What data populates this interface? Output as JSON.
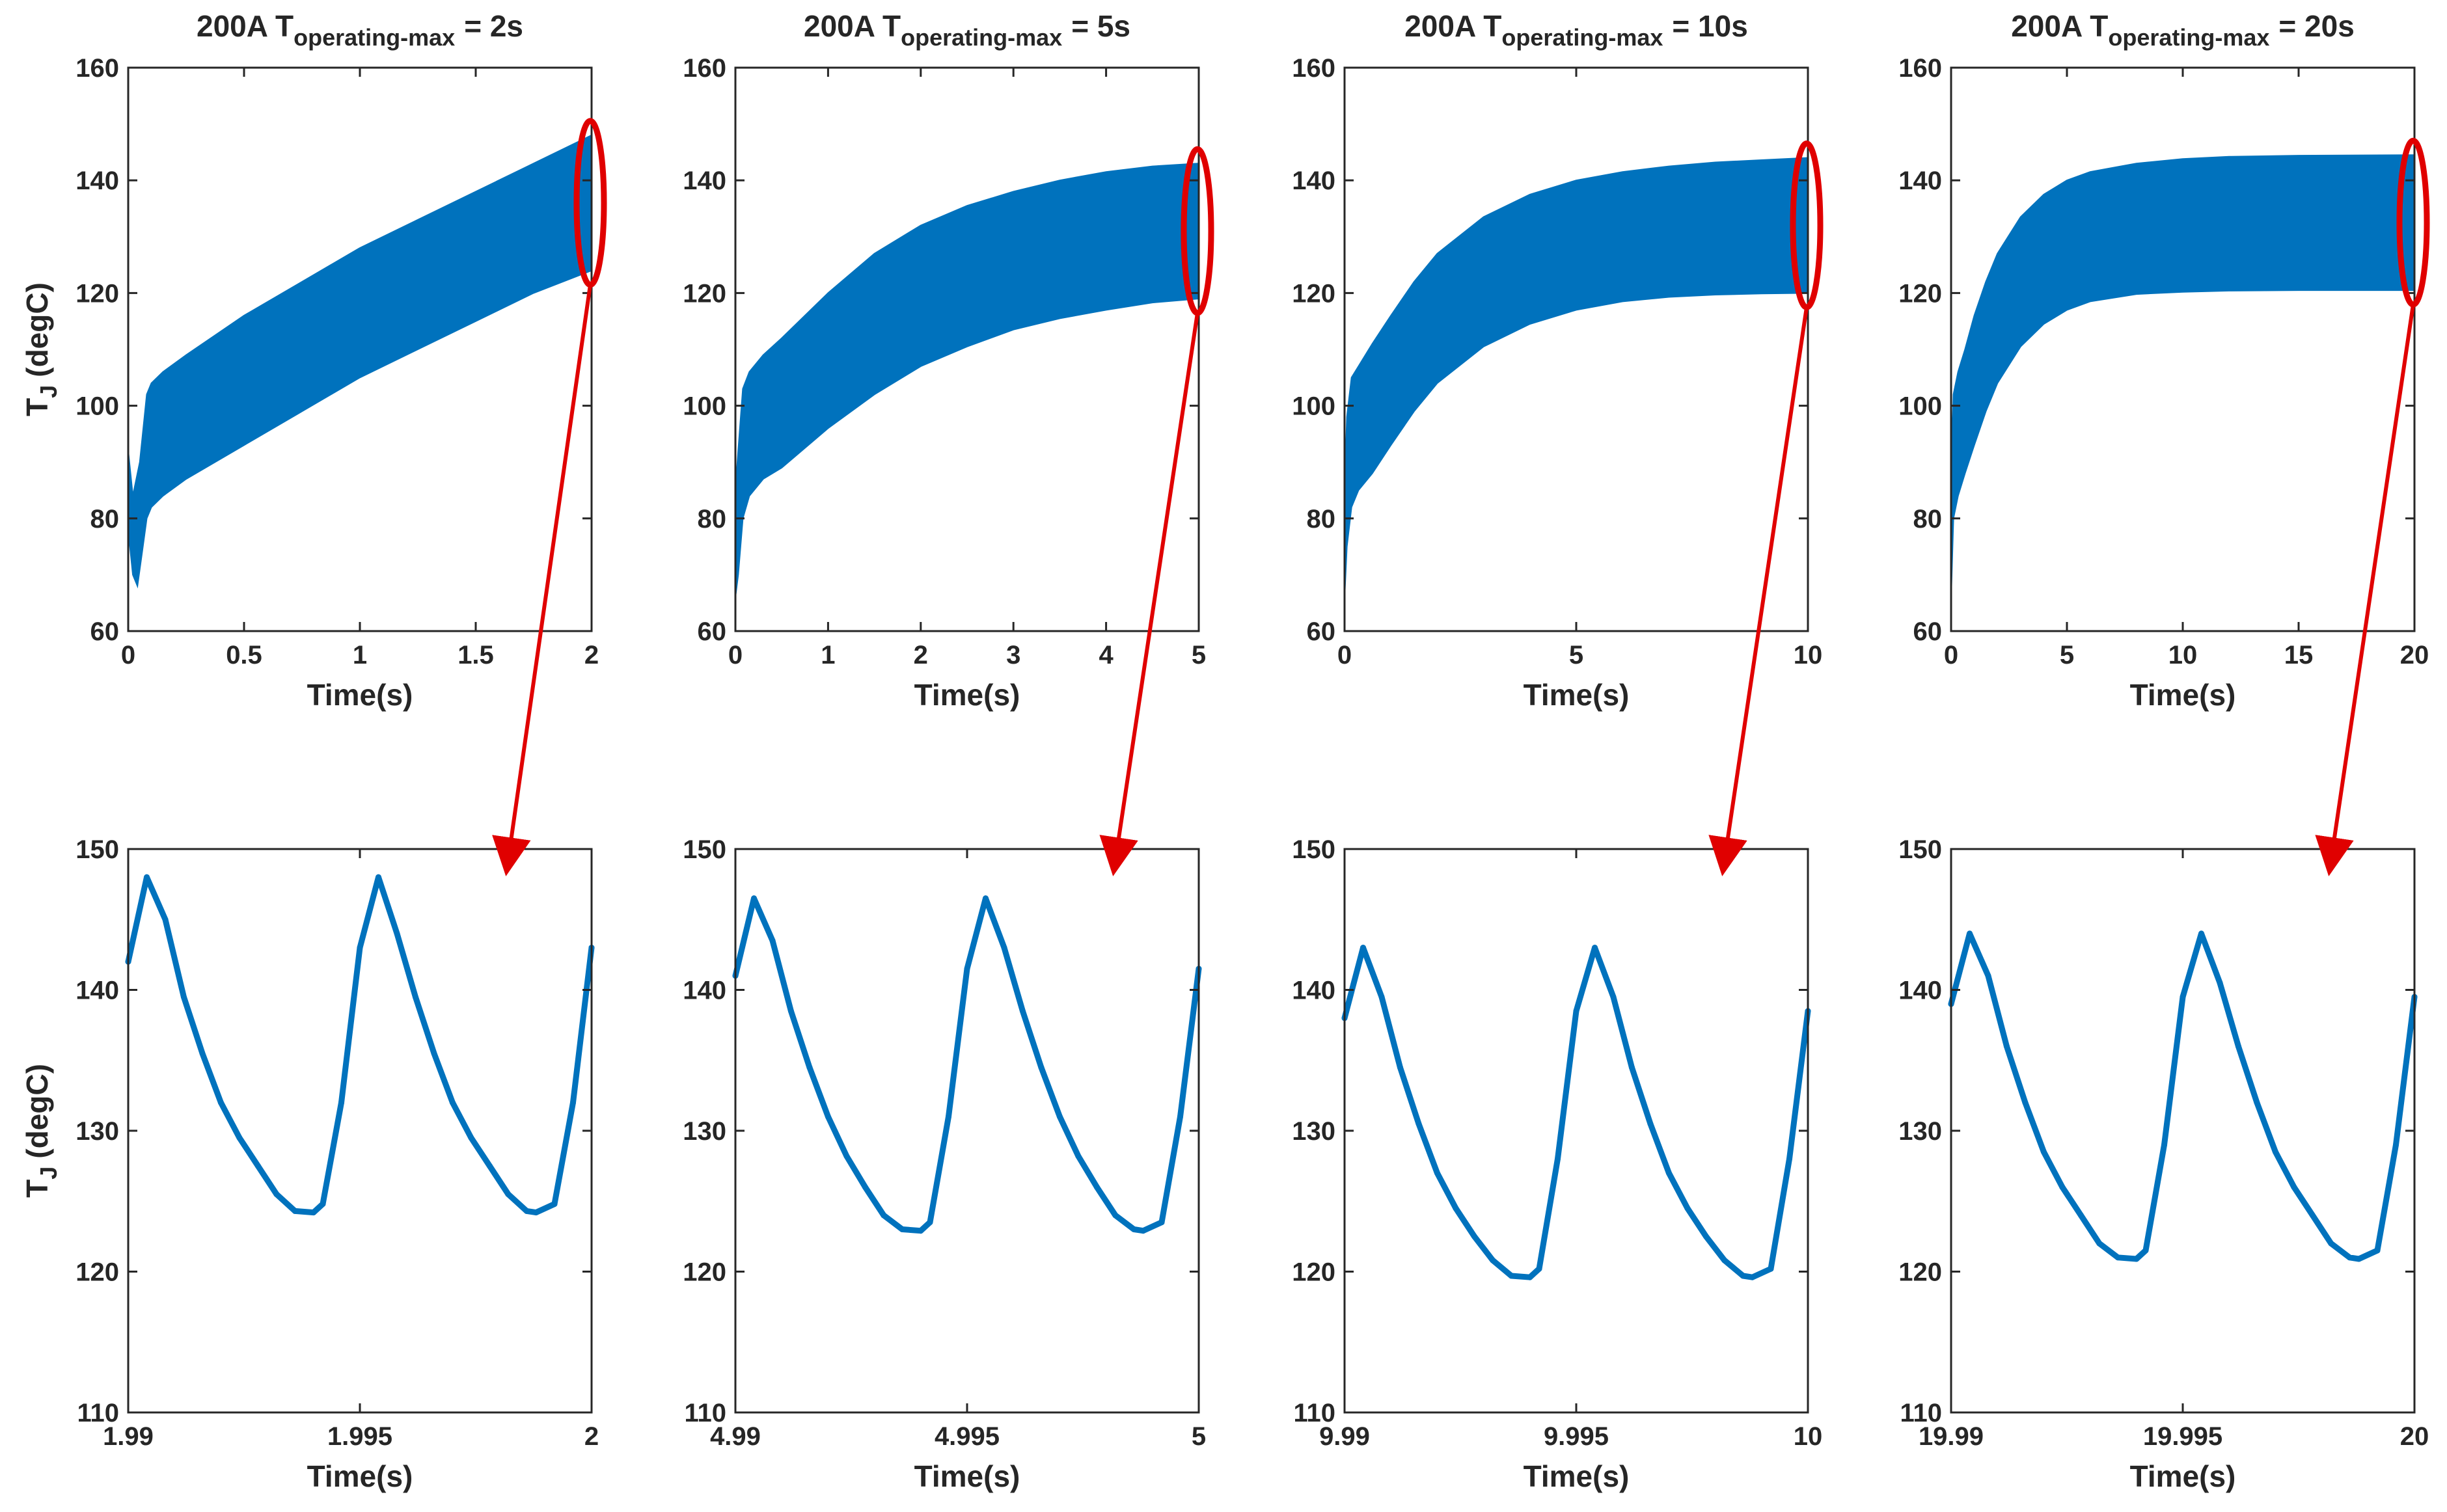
{
  "colors": {
    "series": "#0072BD",
    "annotation": "#E00000",
    "axis": "#262626",
    "background": "#FFFFFF"
  },
  "chart_data": [
    {
      "type": "area",
      "title": "200A T",
      "title_subscript": "operating-max",
      "title_suffix": "= 2s",
      "xlabel": "Time(s)",
      "ylabel": "T",
      "ylabel_subscript": "J",
      "ylabel_suffix": "(degC)",
      "xlim": [
        0,
        2
      ],
      "ylim": [
        60,
        160
      ],
      "xticks": [
        0,
        0.5,
        1,
        1.5,
        2
      ],
      "xtick_labels": [
        "0",
        "0.5",
        "1",
        "1.5",
        "2"
      ],
      "yticks": [
        60,
        80,
        100,
        120,
        140,
        160
      ],
      "ytick_labels": [
        "60",
        "80",
        "100",
        "120",
        "140",
        "160"
      ],
      "series": [
        {
          "name": "upper",
          "x": [
            0,
            0.02,
            0.05,
            0.08,
            0.1,
            0.15,
            0.25,
            0.5,
            0.75,
            1,
            1.25,
            1.5,
            1.75,
            2
          ],
          "values": [
            92,
            84,
            90,
            102,
            104,
            106,
            109,
            116,
            122,
            128,
            133,
            138,
            143,
            148
          ]
        },
        {
          "name": "lower",
          "x": [
            0,
            0.02,
            0.04,
            0.06,
            0.08,
            0.1,
            0.15,
            0.25,
            0.5,
            0.75,
            1,
            1.25,
            1.5,
            1.75,
            2
          ],
          "values": [
            78,
            70,
            68,
            74,
            80,
            82,
            84,
            87,
            93,
            99,
            105,
            110,
            115,
            120,
            124
          ]
        }
      ],
      "annotation": "zoom ellipse at right edge, arrow to detail panel"
    },
    {
      "type": "area",
      "title": "200A T",
      "title_subscript": "operating-max",
      "title_suffix": "= 5s",
      "xlabel": "Time(s)",
      "ylabel": "",
      "xlim": [
        0,
        5
      ],
      "ylim": [
        60,
        160
      ],
      "xticks": [
        0,
        1,
        2,
        3,
        4,
        5
      ],
      "xtick_labels": [
        "0",
        "1",
        "2",
        "3",
        "4",
        "5"
      ],
      "yticks": [
        60,
        80,
        100,
        120,
        140,
        160
      ],
      "ytick_labels": [
        "60",
        "80",
        "100",
        "120",
        "140",
        "160"
      ],
      "series": [
        {
          "name": "upper",
          "x": [
            0,
            0.03,
            0.08,
            0.15,
            0.3,
            0.5,
            1,
            1.5,
            2,
            2.5,
            3,
            3.5,
            4,
            4.5,
            5
          ],
          "values": [
            85,
            92,
            103,
            106,
            109,
            112,
            120,
            127,
            132,
            135.5,
            138,
            140,
            141.5,
            142.5,
            143
          ]
        },
        {
          "name": "lower",
          "x": [
            0,
            0.03,
            0.08,
            0.15,
            0.3,
            0.5,
            1,
            1.5,
            2,
            2.5,
            3,
            3.5,
            4,
            4.5,
            5
          ],
          "values": [
            66,
            70,
            80,
            84,
            87,
            89,
            96,
            102,
            107,
            110.5,
            113.5,
            115.5,
            117,
            118.3,
            119
          ]
        }
      ],
      "annotation": "zoom ellipse at right edge, arrow to detail panel"
    },
    {
      "type": "area",
      "title": "200A T",
      "title_subscript": "operating-max",
      "title_suffix": "= 10s",
      "xlabel": "Time(s)",
      "ylabel": "",
      "xlim": [
        0,
        10
      ],
      "ylim": [
        60,
        160
      ],
      "xticks": [
        0,
        5,
        10
      ],
      "xtick_labels": [
        "0",
        "5",
        "10"
      ],
      "yticks": [
        60,
        80,
        100,
        120,
        140,
        160
      ],
      "ytick_labels": [
        "60",
        "80",
        "100",
        "120",
        "140",
        "160"
      ],
      "series": [
        {
          "name": "upper",
          "x": [
            0,
            0.05,
            0.15,
            0.3,
            0.6,
            1,
            1.5,
            2,
            3,
            4,
            5,
            6,
            7,
            8,
            9,
            10
          ],
          "values": [
            85,
            98,
            105,
            107,
            111,
            116,
            122,
            127,
            133.5,
            137.5,
            140,
            141.5,
            142.5,
            143.2,
            143.6,
            144
          ]
        },
        {
          "name": "lower",
          "x": [
            0,
            0.05,
            0.15,
            0.3,
            0.6,
            1,
            1.5,
            2,
            3,
            4,
            5,
            6,
            7,
            8,
            9,
            10
          ],
          "values": [
            66,
            75,
            82,
            85,
            88,
            93,
            99,
            104,
            110.5,
            114.5,
            117,
            118.5,
            119.3,
            119.7,
            119.9,
            120
          ]
        }
      ],
      "annotation": "zoom ellipse at right edge, arrow to detail panel"
    },
    {
      "type": "area",
      "title": "200A T",
      "title_subscript": "operating-max",
      "title_suffix": "= 20s",
      "xlabel": "Time(s)",
      "ylabel": "",
      "xlim": [
        0,
        20
      ],
      "ylim": [
        60,
        160
      ],
      "xticks": [
        0,
        5,
        10,
        15,
        20
      ],
      "xtick_labels": [
        "0",
        "5",
        "10",
        "15",
        "20"
      ],
      "yticks": [
        60,
        80,
        100,
        120,
        140,
        160
      ],
      "ytick_labels": [
        "60",
        "80",
        "100",
        "120",
        "140",
        "160"
      ],
      "series": [
        {
          "name": "upper",
          "x": [
            0,
            0.1,
            0.3,
            0.6,
            1,
            1.5,
            2,
            3,
            4,
            5,
            6,
            8,
            10,
            12,
            15,
            20
          ],
          "values": [
            88,
            102,
            106,
            110,
            116,
            122,
            127,
            133.5,
            137.5,
            140,
            141.5,
            143,
            143.8,
            144.2,
            144.4,
            144.5
          ]
        },
        {
          "name": "lower",
          "x": [
            0,
            0.1,
            0.3,
            0.6,
            1,
            1.5,
            2,
            3,
            4,
            5,
            6,
            8,
            10,
            12,
            15,
            20
          ],
          "values": [
            66,
            80,
            84,
            88,
            93,
            99,
            104,
            110.5,
            114.5,
            117,
            118.5,
            119.8,
            120.2,
            120.4,
            120.5,
            120.5
          ]
        }
      ],
      "annotation": "zoom ellipse at right edge, arrow to detail panel"
    },
    {
      "type": "line",
      "xlabel": "Time(s)",
      "ylabel": "T",
      "ylabel_subscript": "J",
      "ylabel_suffix": "(degC)",
      "xlim": [
        1.99,
        2
      ],
      "ylim": [
        110,
        150
      ],
      "xticks": [
        1.99,
        1.995,
        2
      ],
      "xtick_labels": [
        "1.99",
        "1.995",
        "2"
      ],
      "yticks": [
        110,
        120,
        130,
        140,
        150
      ],
      "ytick_labels": [
        "110",
        "120",
        "130",
        "140",
        "150"
      ],
      "series": [
        {
          "name": "",
          "x": [
            1.99,
            1.9904,
            1.9908,
            1.9912,
            1.9916,
            1.992,
            1.9924,
            1.9928,
            1.9932,
            1.9936,
            1.994,
            1.9942,
            1.9946,
            1.995,
            1.9954,
            1.9958,
            1.9962,
            1.9966,
            1.997,
            1.9974,
            1.9978,
            1.9982,
            1.9986,
            1.9988,
            1.9992,
            1.9996,
            2.0
          ],
          "values": [
            142,
            148,
            145,
            139.5,
            135.5,
            132,
            129.5,
            127.5,
            125.5,
            124.3,
            124.2,
            124.8,
            132,
            143,
            148,
            144,
            139.5,
            135.5,
            132,
            129.5,
            127.5,
            125.5,
            124.3,
            124.2,
            124.8,
            132,
            143
          ]
        }
      ]
    },
    {
      "type": "line",
      "xlabel": "Time(s)",
      "ylabel": "",
      "xlim": [
        4.99,
        5
      ],
      "ylim": [
        110,
        150
      ],
      "xticks": [
        4.99,
        4.995,
        5
      ],
      "xtick_labels": [
        "4.99",
        "4.995",
        "5"
      ],
      "yticks": [
        110,
        120,
        130,
        140,
        150
      ],
      "ytick_labels": [
        "110",
        "120",
        "130",
        "140",
        "150"
      ],
      "series": [
        {
          "name": "",
          "x": [
            4.99,
            4.9904,
            4.9908,
            4.9912,
            4.9916,
            4.992,
            4.9924,
            4.9928,
            4.9932,
            4.9936,
            4.994,
            4.9942,
            4.9946,
            4.995,
            4.9954,
            4.9958,
            4.9962,
            4.9966,
            4.997,
            4.9974,
            4.9978,
            4.9982,
            4.9986,
            4.9988,
            4.9992,
            4.9996,
            5.0
          ],
          "values": [
            141,
            146.5,
            143.5,
            138.5,
            134.5,
            131,
            128.2,
            126,
            124,
            123,
            122.9,
            123.5,
            131,
            141.5,
            146.5,
            143,
            138.5,
            134.5,
            131,
            128.2,
            126,
            124,
            123,
            122.9,
            123.5,
            131,
            141.5
          ]
        }
      ]
    },
    {
      "type": "line",
      "xlabel": "Time(s)",
      "ylabel": "",
      "xlim": [
        9.99,
        10
      ],
      "ylim": [
        110,
        150
      ],
      "xticks": [
        9.99,
        9.995,
        10
      ],
      "xtick_labels": [
        "9.99",
        "9.995",
        "10"
      ],
      "yticks": [
        110,
        120,
        130,
        140,
        150
      ],
      "ytick_labels": [
        "110",
        "120",
        "130",
        "140",
        "150"
      ],
      "series": [
        {
          "name": "",
          "x": [
            9.99,
            9.9904,
            9.9908,
            9.9912,
            9.9916,
            9.992,
            9.9924,
            9.9928,
            9.9932,
            9.9936,
            9.994,
            9.9942,
            9.9946,
            9.995,
            9.9954,
            9.9958,
            9.9962,
            9.9966,
            9.997,
            9.9974,
            9.9978,
            9.9982,
            9.9986,
            9.9988,
            9.9992,
            9.9996,
            10.0
          ],
          "values": [
            138,
            143,
            139.5,
            134.5,
            130.5,
            127,
            124.5,
            122.5,
            120.8,
            119.7,
            119.6,
            120.2,
            128,
            138.5,
            143,
            139.5,
            134.5,
            130.5,
            127,
            124.5,
            122.5,
            120.8,
            119.7,
            119.6,
            120.2,
            128,
            138.5
          ]
        }
      ]
    },
    {
      "type": "line",
      "xlabel": "Time(s)",
      "ylabel": "",
      "xlim": [
        19.99,
        20
      ],
      "ylim": [
        110,
        150
      ],
      "xticks": [
        19.99,
        19.995,
        20
      ],
      "xtick_labels": [
        "19.99",
        "19.995",
        "20"
      ],
      "yticks": [
        110,
        120,
        130,
        140,
        150
      ],
      "ytick_labels": [
        "110",
        "120",
        "130",
        "140",
        "150"
      ],
      "series": [
        {
          "name": "",
          "x": [
            19.99,
            19.9904,
            19.9908,
            19.9912,
            19.9916,
            19.992,
            19.9924,
            19.9928,
            19.9932,
            19.9936,
            19.994,
            19.9942,
            19.9946,
            19.995,
            19.9954,
            19.9958,
            19.9962,
            19.9966,
            19.997,
            19.9974,
            19.9978,
            19.9982,
            19.9986,
            19.9988,
            19.9992,
            19.9996,
            20.0
          ],
          "values": [
            139,
            144,
            141,
            136,
            132,
            128.5,
            126,
            124,
            122,
            121,
            120.9,
            121.5,
            129,
            139.5,
            144,
            140.5,
            136,
            132,
            128.5,
            126,
            124,
            122,
            121,
            120.9,
            121.5,
            129,
            139.5
          ]
        }
      ]
    }
  ]
}
